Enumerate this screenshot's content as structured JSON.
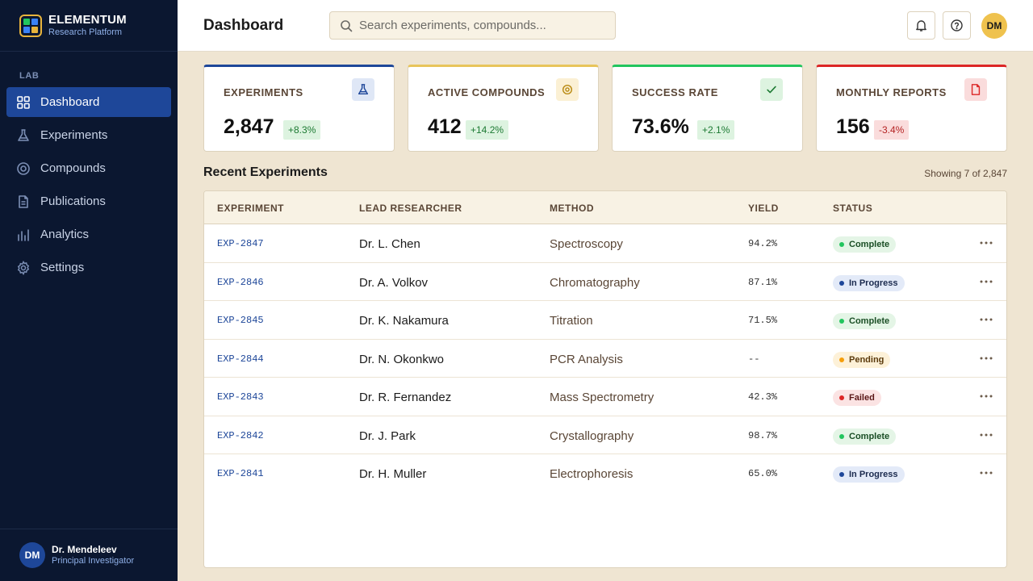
{
  "brand": {
    "name": "ELEMENTUM",
    "subtitle": "Research Platform"
  },
  "sidebar": {
    "section_label": "LAB",
    "items": [
      {
        "label": "Dashboard",
        "icon": "grid-icon",
        "active": true
      },
      {
        "label": "Experiments",
        "icon": "flask-icon",
        "active": false
      },
      {
        "label": "Compounds",
        "icon": "target-icon",
        "active": false
      },
      {
        "label": "Publications",
        "icon": "document-icon",
        "active": false
      },
      {
        "label": "Analytics",
        "icon": "bar-chart-icon",
        "active": false
      },
      {
        "label": "Settings",
        "icon": "gear-icon",
        "active": false
      }
    ],
    "user": {
      "initials": "DM",
      "name": "Dr. Mendeleev",
      "role": "Principal Investigator"
    }
  },
  "header": {
    "title": "Dashboard",
    "search_placeholder": "Search experiments, compounds...",
    "notifications_icon": "bell-icon",
    "help_icon": "help-icon",
    "avatar_initials": "DM"
  },
  "stats": [
    {
      "label": "EXPERIMENTS",
      "value": "2,847",
      "delta": "+8.3%",
      "trend": "up",
      "icon": "flask-icon",
      "accent": "#1e4799"
    },
    {
      "label": "ACTIVE COMPOUNDS",
      "value": "412",
      "delta": "+14.2%",
      "trend": "up",
      "icon": "target-icon",
      "accent": "#e8b43c"
    },
    {
      "label": "SUCCESS RATE",
      "value": "73.6%",
      "delta": "+2.1%",
      "trend": "up",
      "icon": "check-icon",
      "accent": "#22c55e"
    },
    {
      "label": "MONTHLY REPORTS",
      "value": "156",
      "delta": "-3.4%",
      "trend": "down",
      "icon": "document-icon",
      "accent": "#dc2626"
    }
  ],
  "recent": {
    "title": "Recent Experiments",
    "meta": "Showing 7 of 2,847",
    "columns": [
      "EXPERIMENT",
      "LEAD RESEARCHER",
      "METHOD",
      "YIELD",
      "STATUS"
    ],
    "rows": [
      {
        "id": "EXP-2847",
        "researcher": "Dr. L. Chen",
        "method": "Spectroscopy",
        "yield": "94.2%",
        "status": "Complete"
      },
      {
        "id": "EXP-2846",
        "researcher": "Dr. A. Volkov",
        "method": "Chromatography",
        "yield": "87.1%",
        "status": "In Progress"
      },
      {
        "id": "EXP-2845",
        "researcher": "Dr. K. Nakamura",
        "method": "Titration",
        "yield": "71.5%",
        "status": "Complete"
      },
      {
        "id": "EXP-2844",
        "researcher": "Dr. N. Okonkwo",
        "method": "PCR Analysis",
        "yield": "--",
        "status": "Pending"
      },
      {
        "id": "EXP-2843",
        "researcher": "Dr. R. Fernandez",
        "method": "Mass Spectrometry",
        "yield": "42.3%",
        "status": "Failed"
      },
      {
        "id": "EXP-2842",
        "researcher": "Dr. J. Park",
        "method": "Crystallography",
        "yield": "98.7%",
        "status": "Complete"
      },
      {
        "id": "EXP-2841",
        "researcher": "Dr. H. Muller",
        "method": "Electrophoresis",
        "yield": "65.0%",
        "status": "In Progress"
      }
    ]
  },
  "colors": {
    "sidebar_bg": "#0b1730",
    "accent_blue": "#1e4799",
    "accent_gold": "#efc24e",
    "page_bg": "#efe5d2"
  }
}
